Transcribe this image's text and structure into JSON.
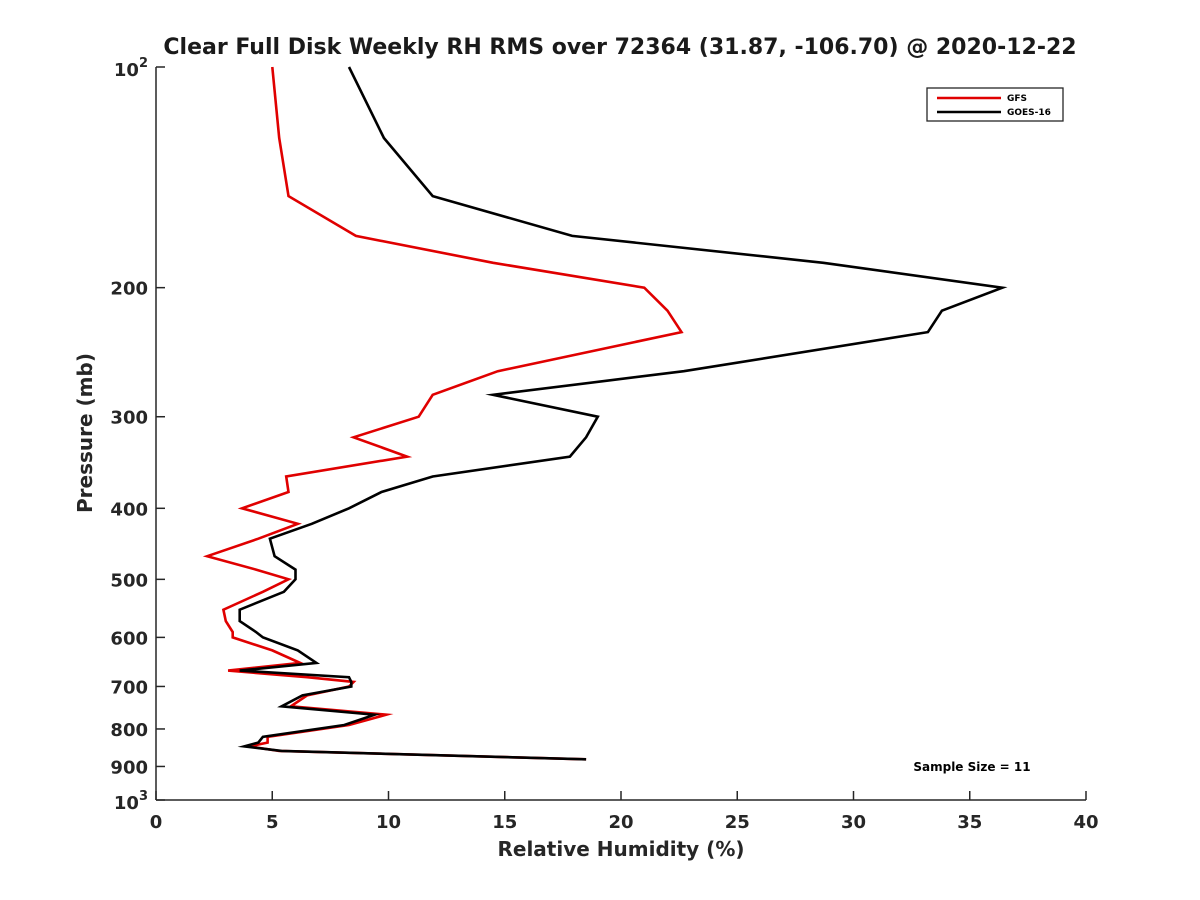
{
  "chart_data": {
    "type": "line",
    "title": "Clear Full Disk Weekly RH RMS over 72364 (31.87, -106.70) @ 2020-12-22",
    "xlabel": "Relative Humidity (%)",
    "ylabel": "Pressure (mb)",
    "xlim": [
      0,
      40
    ],
    "ylim": [
      100,
      1000
    ],
    "y_scale": "log",
    "y_reversed": true,
    "grid": false,
    "legend_position": "top-right",
    "annotation": "Sample Size = 11",
    "x_ticks": [
      "0",
      "5",
      "10",
      "15",
      "20",
      "25",
      "30",
      "35",
      "40"
    ],
    "y_ticks": [
      {
        "value": 100,
        "base": "10",
        "exp": "2"
      },
      {
        "value": 200,
        "label": "200"
      },
      {
        "value": 300,
        "label": "300"
      },
      {
        "value": 400,
        "label": "400"
      },
      {
        "value": 500,
        "label": "500"
      },
      {
        "value": 600,
        "label": "600"
      },
      {
        "value": 700,
        "label": "700"
      },
      {
        "value": 800,
        "label": "800"
      },
      {
        "value": 900,
        "label": "900"
      },
      {
        "value": 1000,
        "base": "10",
        "exp": "3"
      }
    ],
    "series": [
      {
        "name": "GFS",
        "color": "#e00000",
        "points": [
          [
            5.0,
            100
          ],
          [
            5.3,
            125
          ],
          [
            5.7,
            150
          ],
          [
            8.6,
            170
          ],
          [
            14.5,
            185
          ],
          [
            21.0,
            200
          ],
          [
            22.0,
            215
          ],
          [
            22.6,
            230
          ],
          [
            14.7,
            260
          ],
          [
            11.9,
            280
          ],
          [
            11.3,
            300
          ],
          [
            8.5,
            320
          ],
          [
            10.8,
            340
          ],
          [
            5.6,
            362
          ],
          [
            5.7,
            380
          ],
          [
            3.7,
            400
          ],
          [
            6.1,
            420
          ],
          [
            4.4,
            440
          ],
          [
            2.2,
            465
          ],
          [
            4.3,
            485
          ],
          [
            5.7,
            500
          ],
          [
            4.6,
            520
          ],
          [
            2.9,
            550
          ],
          [
            3.0,
            570
          ],
          [
            3.3,
            590
          ],
          [
            3.3,
            600
          ],
          [
            5.0,
            625
          ],
          [
            6.2,
            650
          ],
          [
            3.1,
            666
          ],
          [
            6.5,
            680
          ],
          [
            8.5,
            690
          ],
          [
            8.3,
            700
          ],
          [
            6.5,
            720
          ],
          [
            5.8,
            745
          ],
          [
            9.9,
            765
          ],
          [
            8.3,
            790
          ],
          [
            4.8,
            820
          ],
          [
            4.8,
            835
          ],
          [
            4.0,
            845
          ],
          [
            5.3,
            857
          ],
          [
            18.5,
            880
          ]
        ]
      },
      {
        "name": "GOES-16",
        "color": "#000000",
        "points": [
          [
            8.3,
            100
          ],
          [
            9.8,
            125
          ],
          [
            11.9,
            150
          ],
          [
            17.9,
            170
          ],
          [
            28.7,
            185
          ],
          [
            36.4,
            200
          ],
          [
            33.8,
            215
          ],
          [
            33.2,
            230
          ],
          [
            22.7,
            260
          ],
          [
            14.5,
            280
          ],
          [
            19.0,
            300
          ],
          [
            18.5,
            320
          ],
          [
            17.8,
            340
          ],
          [
            11.9,
            362
          ],
          [
            9.7,
            380
          ],
          [
            8.3,
            400
          ],
          [
            6.7,
            420
          ],
          [
            4.9,
            440
          ],
          [
            5.1,
            465
          ],
          [
            6.0,
            485
          ],
          [
            6.0,
            500
          ],
          [
            5.5,
            520
          ],
          [
            3.6,
            550
          ],
          [
            3.6,
            570
          ],
          [
            4.3,
            590
          ],
          [
            4.6,
            600
          ],
          [
            6.1,
            625
          ],
          [
            6.9,
            650
          ],
          [
            3.6,
            666
          ],
          [
            8.3,
            680
          ],
          [
            8.4,
            690
          ],
          [
            8.4,
            700
          ],
          [
            6.3,
            720
          ],
          [
            5.4,
            745
          ],
          [
            9.4,
            765
          ],
          [
            8.1,
            790
          ],
          [
            4.6,
            820
          ],
          [
            4.4,
            835
          ],
          [
            3.8,
            845
          ],
          [
            5.4,
            857
          ],
          [
            18.5,
            880
          ]
        ]
      }
    ]
  }
}
